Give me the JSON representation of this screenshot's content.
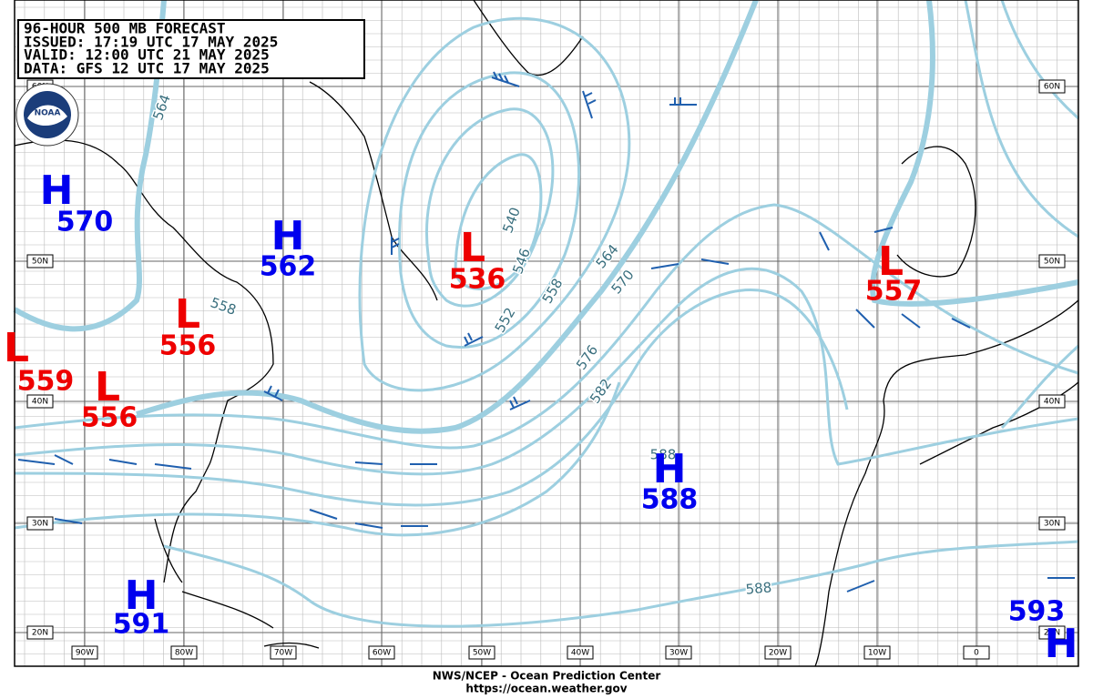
{
  "header": {
    "lines": [
      "96-HOUR 500 MB FORECAST",
      "ISSUED: 17:19 UTC 17 MAY 2025",
      "VALID:  12:00 UTC 21 MAY 2025",
      "DATA:  GFS 12 UTC 17 MAY 2025"
    ]
  },
  "logo": "NOAA",
  "lat_labels": [
    "60N",
    "50N",
    "40N",
    "30N",
    "20N"
  ],
  "lon_labels": [
    "90W",
    "80W",
    "70W",
    "60W",
    "50W",
    "40W",
    "30W",
    "20W",
    "10W",
    "0"
  ],
  "centers": [
    {
      "type": "H",
      "value": 570
    },
    {
      "type": "H",
      "value": 562
    },
    {
      "type": "L",
      "value": 536
    },
    {
      "type": "L",
      "value": 556
    },
    {
      "type": "L",
      "value": 559
    },
    {
      "type": "L",
      "value": 556
    },
    {
      "type": "H",
      "value": 588
    },
    {
      "type": "L",
      "value": 557
    },
    {
      "type": "H",
      "value": 591
    },
    {
      "type": "H",
      "value": 593
    }
  ],
  "contour_labels": [
    564,
    558,
    540,
    546,
    552,
    558,
    564,
    570,
    576,
    582,
    588,
    588
  ],
  "footer": [
    "NWS/NCEP - Ocean Prediction Center",
    "https://ocean.weather.gov"
  ]
}
